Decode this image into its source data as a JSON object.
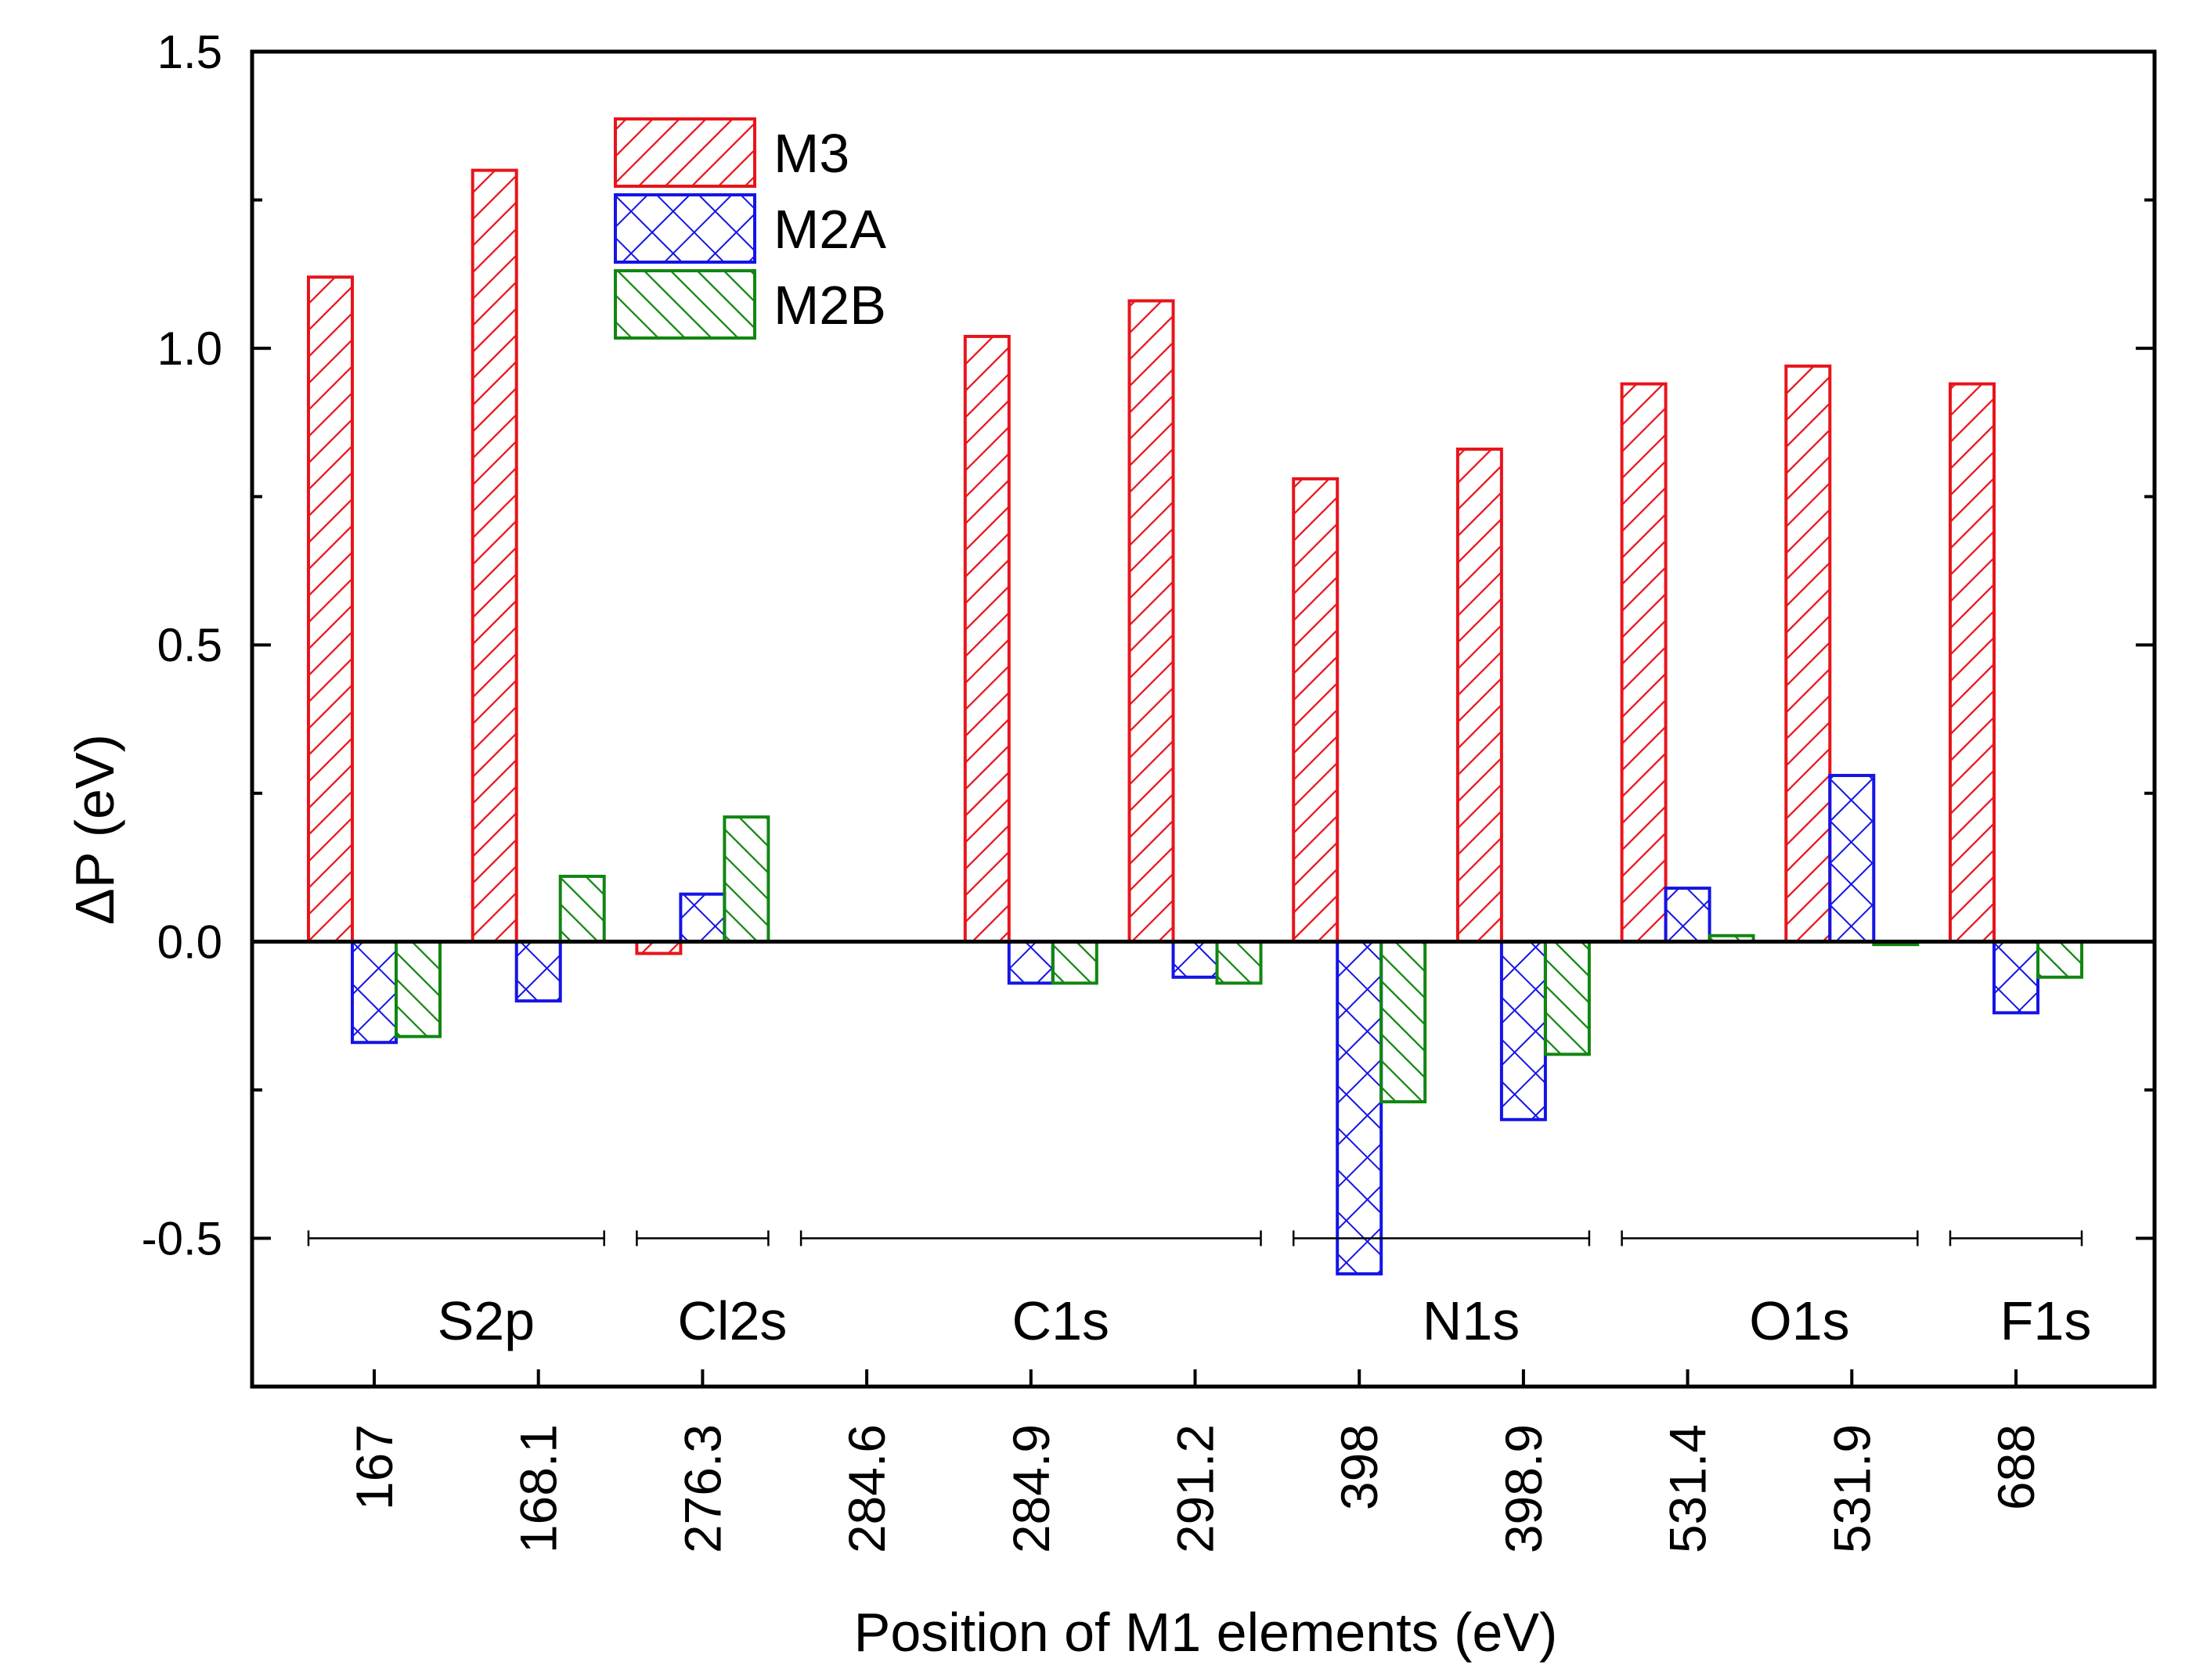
{
  "chart_data": {
    "type": "bar",
    "title": "",
    "xlabel": "Position of M1 elements (eV)",
    "ylabel": "ΔP (eV)",
    "ylim": [
      -0.75,
      1.5
    ],
    "yticks": [
      "-0.5",
      "0.0",
      "0.5",
      "1.0",
      "1.5"
    ],
    "ytick_values": [
      -0.5,
      0.0,
      0.5,
      1.0,
      1.5
    ],
    "categories": [
      "167",
      "168.1",
      "276.3",
      "284.6",
      "284.9",
      "291.2",
      "398",
      "398.9",
      "531.4",
      "531.9",
      "688"
    ],
    "series": [
      {
        "name": "M3",
        "color": "#e8141b",
        "pattern": "diagonal-forward",
        "values": [
          1.12,
          1.3,
          -0.02,
          0.0,
          1.02,
          1.08,
          0.78,
          0.83,
          0.94,
          0.97,
          0.94
        ]
      },
      {
        "name": "M2A",
        "color": "#1414e6",
        "pattern": "crosshatch",
        "values": [
          -0.17,
          -0.1,
          0.08,
          0.0,
          -0.07,
          -0.06,
          -0.56,
          -0.3,
          0.09,
          0.28,
          -0.12
        ]
      },
      {
        "name": "M2B",
        "color": "#118611",
        "pattern": "diagonal-backward",
        "values": [
          -0.16,
          0.11,
          0.21,
          0.0,
          -0.07,
          -0.07,
          -0.27,
          -0.19,
          0.01,
          -0.005,
          -0.06
        ]
      }
    ],
    "groups": [
      {
        "label": "S2p",
        "first": 0,
        "last": 1
      },
      {
        "label": "Cl2s",
        "first": 2,
        "last": 2
      },
      {
        "label": "C1s",
        "first": 3,
        "last": 5
      },
      {
        "label": "N1s",
        "first": 6,
        "last": 7
      },
      {
        "label": "O1s",
        "first": 8,
        "last": 9
      },
      {
        "label": "F1s",
        "first": 10,
        "last": 10
      }
    ],
    "legend_position": "top-left",
    "grid": false
  }
}
